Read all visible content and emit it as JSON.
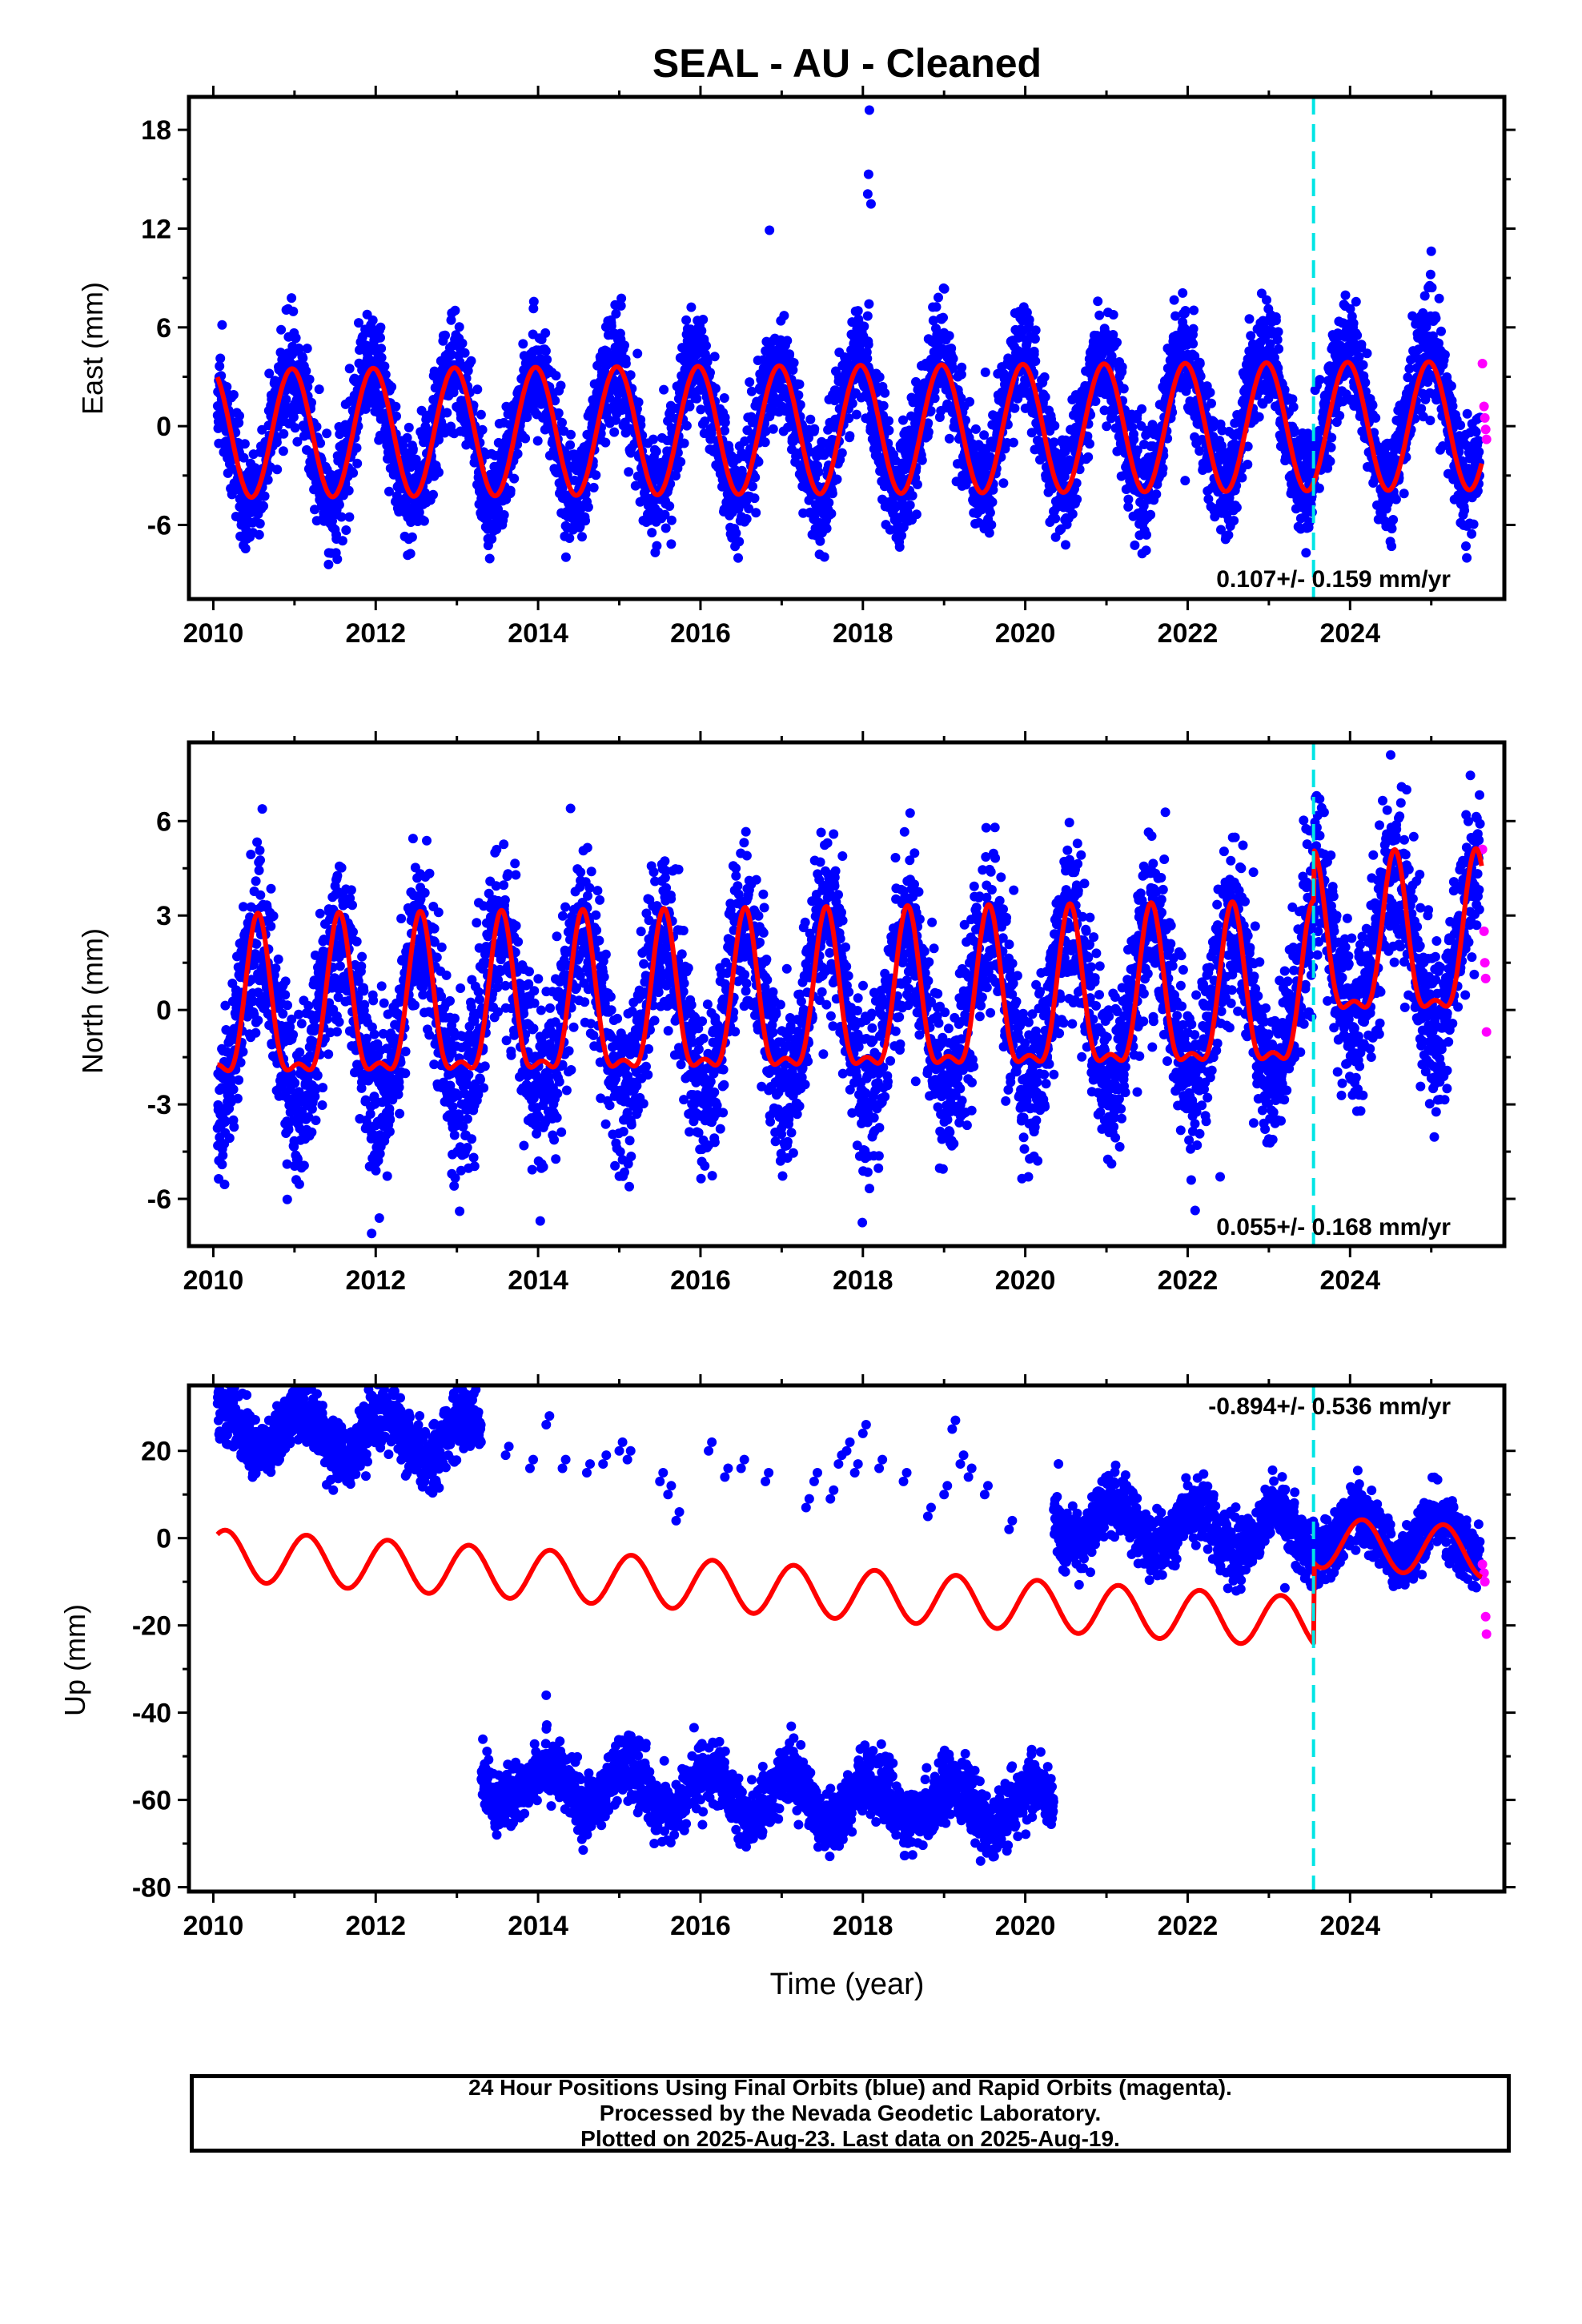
{
  "colors": {
    "final_orbits": "#0000ff",
    "rapid_orbits": "#ff00ff",
    "model": "#ff0000",
    "equipment_change": "#00e5e5",
    "frame": "#000000"
  },
  "footer": {
    "line1": "24 Hour Positions Using Final Orbits (blue) and Rapid Orbits (magenta).",
    "line2": "Processed by the Nevada Geodetic Laboratory.",
    "line3": "Plotted on 2025-Aug-23. Last data on 2025-Aug-19."
  },
  "chart_data": [
    {
      "type": "scatter",
      "title": "SEAL  - AU - Cleaned",
      "ylabel": "East (mm)",
      "xlabel": "",
      "xlim": [
        2009.7,
        2025.9
      ],
      "ylim": [
        -10.5,
        20
      ],
      "xticks": [
        2010,
        2012,
        2014,
        2016,
        2018,
        2020,
        2022,
        2024
      ],
      "xtick_labels": [
        "2010",
        "2012",
        "2014",
        "2016",
        "2018",
        "2020",
        "2022",
        "2024"
      ],
      "yticks": [
        -6,
        0,
        6,
        12,
        18
      ],
      "ytick_labels": [
        "-6",
        "0",
        "6",
        "12",
        "18"
      ],
      "velocity_label": "0.107+/- 0.159 mm/yr",
      "velocity_position": "bottom-right",
      "equipment_change_year": 2023.55,
      "series_final": {
        "x_range": [
          2010.05,
          2025.6
        ],
        "offset_segments": [
          {
            "from": 2010.05,
            "to": 2025.6,
            "offset": 0
          }
        ],
        "trend": 0.1,
        "amplitude": 4.0,
        "phase_peak": 0.95,
        "scatter": 1.6,
        "sampling_per_year": 340
      },
      "series_rapid": {
        "x": [
          2025.63,
          2025.65,
          2025.66,
          2025.67,
          2025.68
        ],
        "y": [
          3.8,
          1.2,
          0.5,
          -0.2,
          -0.8
        ]
      },
      "outliers": [
        [
          2018.08,
          19.2
        ],
        [
          2018.07,
          15.3
        ],
        [
          2018.06,
          14.1
        ],
        [
          2016.85,
          11.9
        ],
        [
          2018.1,
          13.5
        ]
      ],
      "model": {
        "x_range": [
          2010.05,
          2025.62
        ],
        "segments": [
          {
            "from": 2010.05,
            "to": 2025.62,
            "offset": -0.2
          }
        ],
        "trend": 0.03,
        "amplitude": 3.9,
        "phase_peak": 0.97,
        "semiannual": 0.0
      }
    },
    {
      "type": "scatter",
      "title": "",
      "ylabel": "North (mm)",
      "xlabel": "",
      "xlim": [
        2009.7,
        2025.9
      ],
      "ylim": [
        -7.5,
        8.5
      ],
      "xticks": [
        2010,
        2012,
        2014,
        2016,
        2018,
        2020,
        2022,
        2024
      ],
      "xtick_labels": [
        "2010",
        "2012",
        "2014",
        "2016",
        "2018",
        "2020",
        "2022",
        "2024"
      ],
      "yticks": [
        -6,
        -3,
        0,
        3,
        6
      ],
      "ytick_labels": [
        "-6",
        "-3",
        "0",
        "3",
        "6"
      ],
      "velocity_label": "0.055+/- 0.168 mm/yr",
      "velocity_position": "bottom-right",
      "equipment_change_year": 2023.55,
      "series_final": {
        "x_range": [
          2010.05,
          2025.6
        ],
        "offset_segments": [
          {
            "from": 2010.05,
            "to": 2023.55,
            "offset": 0
          },
          {
            "from": 2023.55,
            "to": 2025.6,
            "offset": 1.5
          }
        ],
        "trend": 0.05,
        "amplitude": 2.6,
        "phase_peak": 0.55,
        "scatter": 1.3,
        "sampling_per_year": 340
      },
      "series_rapid": {
        "x": [
          2025.63,
          2025.65,
          2025.66,
          2025.67,
          2025.68
        ],
        "y": [
          5.1,
          2.5,
          1.5,
          1.0,
          -0.7
        ]
      },
      "outliers": [
        [
          2011.95,
          -7.1
        ],
        [
          2024.5,
          8.1
        ],
        [
          2014.4,
          6.4
        ],
        [
          2022.4,
          -5.3
        ]
      ],
      "model": {
        "x_range": [
          2010.05,
          2025.62
        ],
        "segments": [
          {
            "from": 2010.05,
            "to": 2023.55,
            "offset": 0.0
          },
          {
            "from": 2023.55,
            "to": 2025.62,
            "offset": 1.6
          }
        ],
        "trend": 0.03,
        "amplitude": 2.4,
        "phase_peak": 0.55,
        "semiannual": 0.9
      }
    },
    {
      "type": "scatter",
      "title": "",
      "ylabel": "Up (mm)",
      "xlabel": "Time (year)",
      "xlim": [
        2009.7,
        2025.9
      ],
      "ylim": [
        -81,
        35
      ],
      "xticks": [
        2010,
        2012,
        2014,
        2016,
        2018,
        2020,
        2022,
        2024
      ],
      "xtick_labels": [
        "2010",
        "2012",
        "2014",
        "2016",
        "2018",
        "2020",
        "2022",
        "2024"
      ],
      "yticks": [
        -80,
        -60,
        -40,
        -20,
        0,
        20
      ],
      "ytick_labels": [
        "-80",
        "-60",
        "-40",
        "-20",
        "0",
        "20"
      ],
      "velocity_label": "-0.894+/- 0.536 mm/yr",
      "velocity_position": "top-right",
      "equipment_change_year": 2023.55,
      "series_final": {
        "x_range": [
          2010.05,
          2025.6
        ],
        "offset_segments": [
          {
            "from": 2010.05,
            "to": 2013.3,
            "offset": 18
          },
          {
            "from": 2013.3,
            "to": 2020.35,
            "offset": -60
          },
          {
            "from": 2020.35,
            "to": 2023.55,
            "offset": 6
          },
          {
            "from": 2023.55,
            "to": 2025.6,
            "offset": 6
          }
        ],
        "trend": -0.9,
        "amplitude": 5.0,
        "phase_peak": 0.1,
        "scatter": 3.5,
        "sampling_per_year": 300
      },
      "series_sparse": {
        "x": [
          2013.6,
          2013.9,
          2014.1,
          2014.3,
          2014.6,
          2014.8,
          2015.0,
          2015.1,
          2015.5,
          2015.6,
          2015.7,
          2016.1,
          2016.3,
          2016.5,
          2016.8,
          2017.3,
          2017.4,
          2017.6,
          2017.7,
          2017.8,
          2017.9,
          2018.0,
          2018.2,
          2018.5,
          2018.8,
          2019.0,
          2019.1,
          2019.2,
          2019.3,
          2019.5,
          2019.8
        ],
        "y": [
          19,
          16,
          26,
          16,
          15,
          17,
          20,
          18,
          13,
          10,
          4,
          20,
          14,
          16,
          13,
          7,
          13,
          9,
          17,
          20,
          15,
          24,
          16,
          13,
          5,
          10,
          25,
          17,
          14,
          10,
          2
        ]
      },
      "series_rapid": {
        "x": [
          2025.63,
          2025.65,
          2025.66,
          2025.67,
          2025.68
        ],
        "y": [
          -6,
          -8,
          -10,
          -18,
          -22
        ]
      },
      "outliers": [
        [
          2014.1,
          -36
        ],
        [
          2013.2,
          33
        ]
      ],
      "model": {
        "x_range": [
          2010.05,
          2025.62
        ],
        "segments": [
          {
            "from": 2010.05,
            "to": 2023.55,
            "offset": -13
          },
          {
            "from": 2023.55,
            "to": 2025.62,
            "offset": 5.5
          }
        ],
        "trend": -1.15,
        "amplitude": 5.8,
        "phase_peak": 0.15,
        "semiannual": 0.0
      }
    }
  ]
}
